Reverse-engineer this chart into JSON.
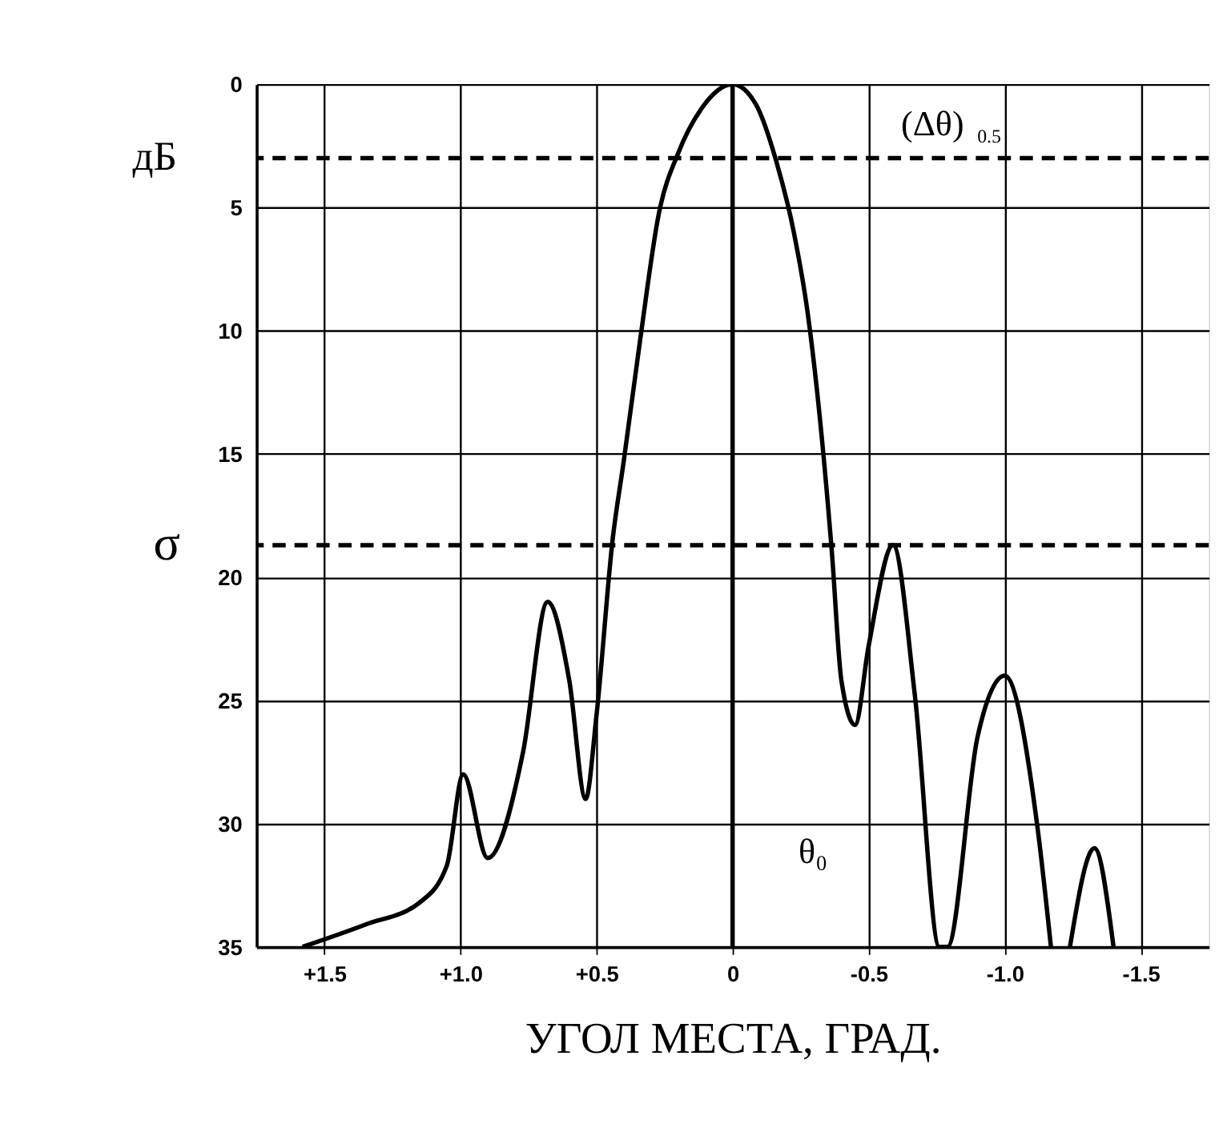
{
  "chart_data": {
    "type": "line",
    "xlabel": "УГОЛ МЕСТА, ГРАД.",
    "ylabel": "дБ",
    "x": [
      1.58,
      1.35,
      1.15,
      1.05,
      0.99,
      0.9,
      0.77,
      0.68,
      0.6,
      0.54,
      0.5,
      0.44,
      0.4,
      0.34,
      0.27,
      0.2,
      0.115,
      0.0,
      -0.085,
      -0.16,
      -0.225,
      -0.275,
      -0.31,
      -0.365,
      -0.4,
      -0.45,
      -0.5,
      -0.59,
      -0.67,
      -0.76,
      -0.79,
      -0.9,
      -1.0,
      -1.12,
      -1.17,
      -1.2,
      -1.24,
      -1.33,
      -1.4
    ],
    "series": [
      {
        "color": "#000000",
        "values": [
          35,
          34.1,
          33.2,
          31.7,
          28,
          31.4,
          27.1,
          21,
          24.2,
          29,
          25.6,
          18.4,
          15.3,
          10.4,
          5.2,
          2.8,
          1.0,
          0,
          0.8,
          3.1,
          6.0,
          9.2,
          12.4,
          19,
          24.2,
          26,
          22.8,
          18.7,
          24.8,
          35,
          35,
          26.5,
          24,
          30.1,
          35,
          null,
          35,
          31,
          35
        ]
      }
    ],
    "xlim": [
      1.75,
      -1.75
    ],
    "xticks": [
      {
        "value": 1.5,
        "label": "+1.5"
      },
      {
        "value": 1.0,
        "label": "+1.0"
      },
      {
        "value": 0.5,
        "label": "+0.5"
      },
      0,
      {
        "value": -0.5,
        "label": "-0.5"
      },
      {
        "value": -1.0,
        "label": "-1.0"
      },
      {
        "value": -1.5,
        "label": "-1.5"
      }
    ],
    "ylim": [
      35,
      0
    ],
    "yticks": [
      0,
      5,
      10,
      15,
      20,
      25,
      30,
      35
    ],
    "grid": true,
    "marker": "none",
    "line_style": "solid",
    "ref_lines": [
      {
        "axis": "y",
        "value": 3,
        "line_style": "dashed"
      },
      {
        "axis": "y",
        "value": 18.7,
        "label": "σ",
        "line_style": "dashed"
      },
      {
        "axis": "x",
        "value": 0,
        "line_style": "solid"
      }
    ],
    "annotations": [
      "(Δθ)$_{0.5}$",
      "θ₀"
    ]
  }
}
